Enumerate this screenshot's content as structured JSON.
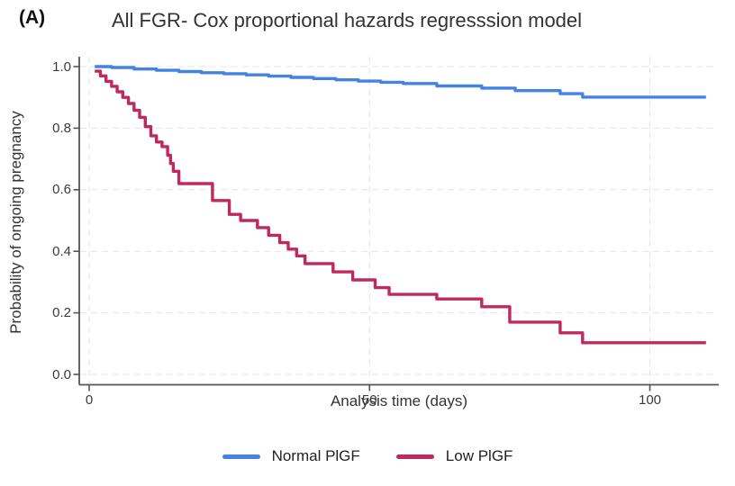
{
  "panel_label": "(A)",
  "chart_data": {
    "type": "line",
    "subtype": "survival-step-curves",
    "title": "All FGR- Cox proportional hazards regresssion model",
    "xlabel": "Analysis time (days)",
    "ylabel": "Probability of ongoing pregnancy",
    "xlim": [
      0,
      110
    ],
    "ylim": [
      0.0,
      1.0
    ],
    "xticks": [
      "0",
      "50",
      "100"
    ],
    "yticks": [
      "0.0",
      "0.2",
      "0.4",
      "0.6",
      "0.8",
      "1.0"
    ],
    "grid": "light dashed gridlines at x ticks and y ticks",
    "legend_position": "bottom-center",
    "axis_color": "#555555",
    "grid_color": "#e4e4e4",
    "series": [
      {
        "name": "Normal PlGF",
        "color": "#4482e4",
        "step": true,
        "points": [
          [
            1,
            1.0
          ],
          [
            4,
            0.997
          ],
          [
            8,
            0.992
          ],
          [
            12,
            0.988
          ],
          [
            16,
            0.984
          ],
          [
            20,
            0.98
          ],
          [
            24,
            0.977
          ],
          [
            28,
            0.973
          ],
          [
            32,
            0.969
          ],
          [
            36,
            0.965
          ],
          [
            40,
            0.961
          ],
          [
            44,
            0.957
          ],
          [
            48,
            0.953
          ],
          [
            52,
            0.949
          ],
          [
            56,
            0.945
          ],
          [
            62,
            0.937
          ],
          [
            70,
            0.93
          ],
          [
            76,
            0.922
          ],
          [
            84,
            0.912
          ],
          [
            88,
            0.901
          ],
          [
            110,
            0.901
          ]
        ]
      },
      {
        "name": "Low PlGF",
        "color": "#c02a5a",
        "step": true,
        "points": [
          [
            1,
            0.985
          ],
          [
            2,
            0.97
          ],
          [
            3,
            0.952
          ],
          [
            4,
            0.936
          ],
          [
            5,
            0.918
          ],
          [
            6,
            0.9
          ],
          [
            7,
            0.88
          ],
          [
            8,
            0.858
          ],
          [
            9,
            0.835
          ],
          [
            10,
            0.805
          ],
          [
            11,
            0.775
          ],
          [
            12,
            0.755
          ],
          [
            13,
            0.74
          ],
          [
            14,
            0.712
          ],
          [
            14.5,
            0.685
          ],
          [
            15,
            0.66
          ],
          [
            16,
            0.62
          ],
          [
            22,
            0.565
          ],
          [
            25,
            0.52
          ],
          [
            27,
            0.5
          ],
          [
            30,
            0.477
          ],
          [
            32,
            0.452
          ],
          [
            34,
            0.428
          ],
          [
            35.5,
            0.407
          ],
          [
            37,
            0.385
          ],
          [
            38.5,
            0.36
          ],
          [
            43.5,
            0.333
          ],
          [
            47,
            0.307
          ],
          [
            51,
            0.282
          ],
          [
            53.5,
            0.26
          ],
          [
            62,
            0.245
          ],
          [
            70,
            0.22
          ],
          [
            75,
            0.17
          ],
          [
            84,
            0.135
          ],
          [
            88,
            0.103
          ],
          [
            110,
            0.103
          ]
        ]
      }
    ]
  }
}
